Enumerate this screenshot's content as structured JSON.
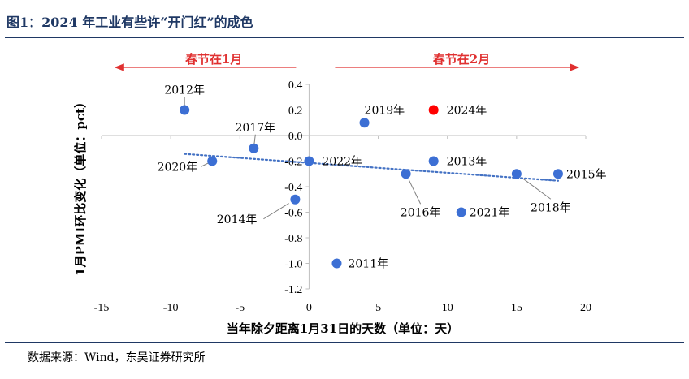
{
  "figure_title": "图1：2024 年工业有些许“开门红”的成色",
  "source": "数据来源：Wind，东吴证券研究所",
  "colors": {
    "title": "#1f3864",
    "point": "#3c6fd4",
    "highlight": "#ff0000",
    "trendline": "#4472c4",
    "arrow": "#e03030"
  },
  "chart_data": {
    "type": "scatter",
    "xlabel": "当年除夕距离1月31日的天数（单位：天）",
    "ylabel": "1月PMI环比变化（单位：pct）",
    "xlim": [
      -15,
      20
    ],
    "ylim": [
      -1.2,
      0.4
    ],
    "xticks": [
      "-15",
      "-10",
      "-5",
      "0",
      "5",
      "10",
      "15",
      "20"
    ],
    "yticks": [
      "0.4",
      "0.2",
      "0.0",
      "-0.2",
      "-0.4",
      "-0.6",
      "-0.8",
      "-1.0",
      "-1.2"
    ],
    "grid": false,
    "trendline": "linear, dotted",
    "annotations": {
      "left_arrow": "春节在1月",
      "right_arrow": "春节在2月"
    },
    "points": [
      {
        "label": "2012年",
        "x": -9,
        "y": 0.2,
        "highlight": false
      },
      {
        "label": "2017年",
        "x": -4,
        "y": -0.1,
        "highlight": false
      },
      {
        "label": "2020年",
        "x": -7,
        "y": -0.2,
        "highlight": false
      },
      {
        "label": "2014年",
        "x": -1,
        "y": -0.5,
        "highlight": false
      },
      {
        "label": "2022年",
        "x": 0,
        "y": -0.2,
        "highlight": false
      },
      {
        "label": "2019年",
        "x": 4,
        "y": 0.1,
        "highlight": false
      },
      {
        "label": "2024年",
        "x": 9,
        "y": 0.2,
        "highlight": true
      },
      {
        "label": "2013年",
        "x": 9,
        "y": -0.2,
        "highlight": false
      },
      {
        "label": "2016年",
        "x": 7,
        "y": -0.3,
        "highlight": false
      },
      {
        "label": "2021年",
        "x": 11,
        "y": -0.6,
        "highlight": false
      },
      {
        "label": "2018年",
        "x": 15,
        "y": -0.3,
        "highlight": false
      },
      {
        "label": "2015年",
        "x": 18,
        "y": -0.3,
        "highlight": false
      },
      {
        "label": "2011年",
        "x": 2,
        "y": -1.0,
        "highlight": false
      }
    ]
  }
}
